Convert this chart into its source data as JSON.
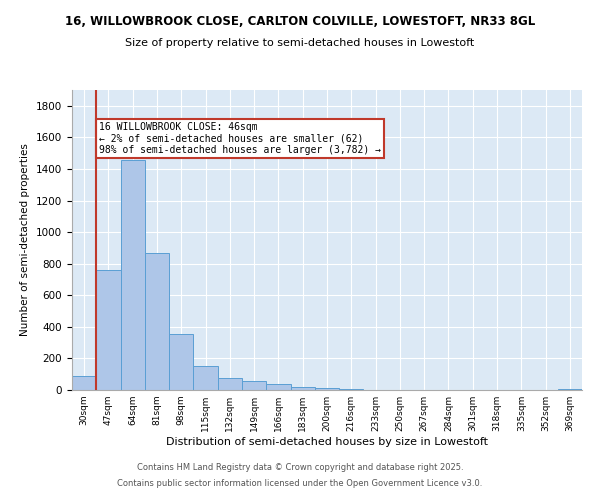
{
  "title1": "16, WILLOWBROOK CLOSE, CARLTON COLVILLE, LOWESTOFT, NR33 8GL",
  "title2": "Size of property relative to semi-detached houses in Lowestoft",
  "xlabel": "Distribution of semi-detached houses by size in Lowestoft",
  "ylabel": "Number of semi-detached properties",
  "categories": [
    "30sqm",
    "47sqm",
    "64sqm",
    "81sqm",
    "98sqm",
    "115sqm",
    "132sqm",
    "149sqm",
    "166sqm",
    "183sqm",
    "200sqm",
    "216sqm",
    "233sqm",
    "250sqm",
    "267sqm",
    "284sqm",
    "301sqm",
    "318sqm",
    "335sqm",
    "352sqm",
    "369sqm"
  ],
  "values": [
    90,
    760,
    1455,
    865,
    355,
    155,
    75,
    55,
    40,
    20,
    12,
    5,
    2,
    1,
    1,
    0,
    0,
    0,
    0,
    0,
    5
  ],
  "bar_color": "#aec6e8",
  "bar_edge_color": "#5a9fd4",
  "vline_color": "#c0392b",
  "annotation_text": "16 WILLOWBROOK CLOSE: 46sqm\n← 2% of semi-detached houses are smaller (62)\n98% of semi-detached houses are larger (3,782) →",
  "box_color": "#c0392b",
  "ylim": [
    0,
    1900
  ],
  "background_color": "#dce9f5",
  "footer1": "Contains HM Land Registry data © Crown copyright and database right 2025.",
  "footer2": "Contains public sector information licensed under the Open Government Licence v3.0."
}
